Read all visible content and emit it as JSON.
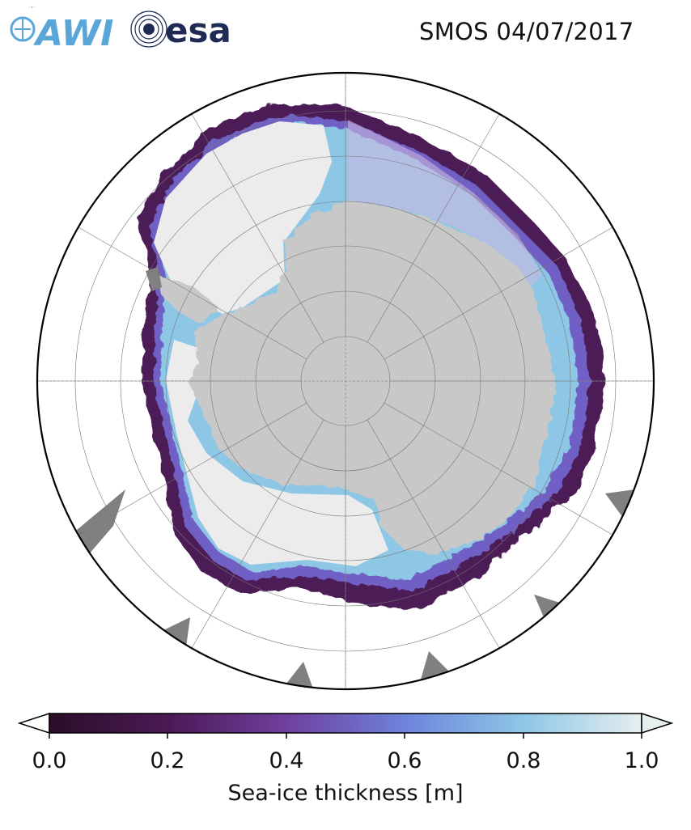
{
  "title": "SMOS 04/07/2017",
  "logos": {
    "awi": "AWI",
    "esa": "esa"
  },
  "colorbar": {
    "label": "Sea-ice thickness [m]",
    "ticks": [
      "0.0",
      "0.2",
      "0.4",
      "0.6",
      "0.8",
      "1.0"
    ],
    "range": [
      0.0,
      1.0
    ],
    "extend": "both",
    "colors": [
      "#2a0d27",
      "#4b1a55",
      "#6f3f9e",
      "#6d83db",
      "#8ec7e6",
      "#e6eeee"
    ]
  },
  "map": {
    "projection": "south polar stereographic",
    "land_color": "#c8c8c8",
    "thick_ice_color": "#ececec",
    "missing_color": "#808080",
    "graticule": true
  }
}
